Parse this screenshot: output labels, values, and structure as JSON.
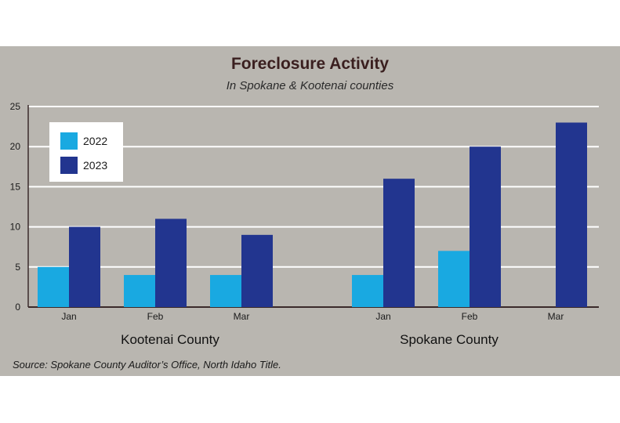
{
  "chart_data": {
    "type": "bar",
    "title": "Foreclosure Activity",
    "subtitle": "In Spokane & Kootenai counties",
    "groups": [
      "Kootenai County",
      "Spokane County"
    ],
    "categories": [
      "Jan",
      "Feb",
      "Mar",
      "Jan",
      "Feb",
      "Mar"
    ],
    "series": [
      {
        "name": "2022",
        "color": "#19a9e1",
        "values": [
          5,
          4,
          4,
          4,
          7,
          0
        ]
      },
      {
        "name": "2023",
        "color": "#22358f",
        "values": [
          10,
          11,
          9,
          16,
          20,
          23
        ]
      }
    ],
    "yticks": [
      "0",
      "5",
      "10",
      "15",
      "20",
      "25"
    ],
    "ylim": [
      0,
      25
    ],
    "grid": true,
    "legend_position": "top-left",
    "source": "Source: Spokane County Auditor’s Office, North Idaho Title."
  }
}
